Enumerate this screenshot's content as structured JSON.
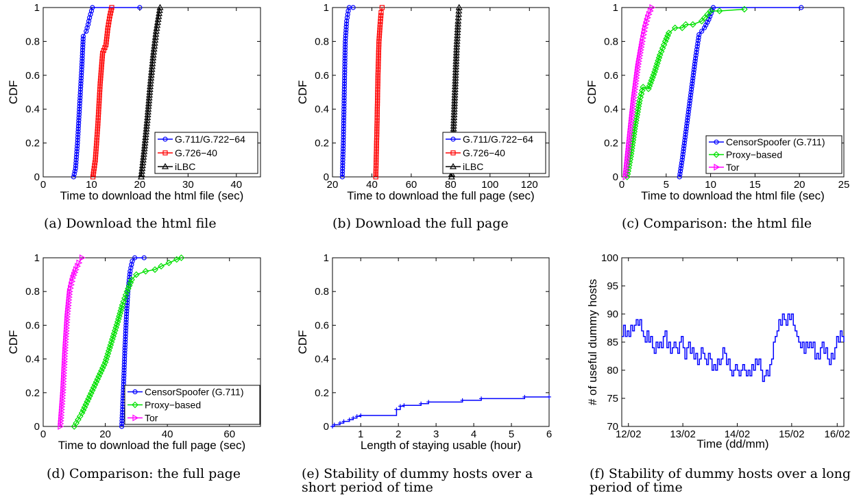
{
  "chart_data": [
    {
      "type": "line",
      "caption": "(a) Download the html file",
      "xlabel": "Time to download the html file (sec)",
      "ylabel": "CDF",
      "xlim": [
        0,
        45
      ],
      "ylim": [
        0,
        1
      ],
      "xticks": [
        0,
        10,
        20,
        30,
        40
      ],
      "yticks": [
        0,
        0.2,
        0.4,
        0.6,
        0.8,
        1
      ],
      "legend": "bottom-right",
      "series": [
        {
          "name": "G.711/G.722−64",
          "color": "#0000ff",
          "marker": "circle",
          "points": [
            [
              6.3,
              0
            ],
            [
              6.7,
              0.05
            ],
            [
              7.1,
              0.2
            ],
            [
              7.6,
              0.45
            ],
            [
              8.0,
              0.65
            ],
            [
              8.3,
              0.83
            ],
            [
              8.9,
              0.86
            ],
            [
              9.3,
              0.9
            ],
            [
              9.6,
              0.94
            ],
            [
              10.2,
              1.0
            ],
            [
              20,
              1.0
            ]
          ]
        },
        {
          "name": "G.726−40",
          "color": "#ff0000",
          "marker": "square",
          "points": [
            [
              10.3,
              0
            ],
            [
              10.8,
              0.1
            ],
            [
              11.3,
              0.3
            ],
            [
              11.8,
              0.55
            ],
            [
              12.3,
              0.73
            ],
            [
              13.0,
              0.78
            ],
            [
              13.4,
              0.88
            ],
            [
              13.8,
              0.95
            ],
            [
              14.2,
              1.0
            ]
          ]
        },
        {
          "name": "iLBC",
          "color": "#000000",
          "marker": "triangle-up",
          "points": [
            [
              20.3,
              0
            ],
            [
              20.9,
              0.15
            ],
            [
              21.6,
              0.35
            ],
            [
              22.2,
              0.55
            ],
            [
              22.8,
              0.72
            ],
            [
              23.4,
              0.86
            ],
            [
              24.2,
              1.0
            ]
          ]
        }
      ]
    },
    {
      "type": "line",
      "caption": "(b) Download the full page",
      "xlabel": "Time to download the full page (sec)",
      "ylabel": "CDF",
      "xlim": [
        20,
        130
      ],
      "ylim": [
        0,
        1
      ],
      "xticks": [
        20,
        40,
        60,
        80,
        100,
        120
      ],
      "yticks": [
        0,
        0.2,
        0.4,
        0.6,
        0.8,
        1
      ],
      "legend": "bottom-right",
      "series": [
        {
          "name": "G.711/G.722−64",
          "color": "#0000ff",
          "marker": "circle",
          "points": [
            [
              25,
              0
            ],
            [
              25.5,
              0.2
            ],
            [
              26,
              0.5
            ],
            [
              26.5,
              0.8
            ],
            [
              27.2,
              0.92
            ],
            [
              28,
              0.98
            ],
            [
              28.5,
              1.0
            ],
            [
              30.5,
              1.0
            ]
          ]
        },
        {
          "name": "G.726−40",
          "color": "#ff0000",
          "marker": "square",
          "points": [
            [
              42,
              0
            ],
            [
              42.6,
              0.3
            ],
            [
              43.1,
              0.6
            ],
            [
              43.6,
              0.8
            ],
            [
              44.2,
              0.9
            ],
            [
              44.7,
              0.97
            ],
            [
              45.2,
              1.0
            ]
          ]
        },
        {
          "name": "iLBC",
          "color": "#000000",
          "marker": "triangle-up",
          "points": [
            [
              80.5,
              0
            ],
            [
              81.2,
              0.2
            ],
            [
              82.2,
              0.5
            ],
            [
              83,
              0.75
            ],
            [
              83.8,
              0.92
            ],
            [
              84.3,
              1.0
            ]
          ]
        }
      ]
    },
    {
      "type": "line",
      "caption": "(c) Comparison: the html file",
      "xlabel": "Time to download the html file (sec)",
      "ylabel": "CDF",
      "xlim": [
        0,
        25
      ],
      "ylim": [
        0,
        1
      ],
      "xticks": [
        0,
        5,
        10,
        15,
        20,
        25
      ],
      "yticks": [
        0,
        0.2,
        0.4,
        0.6,
        0.8,
        1
      ],
      "legend": "bottom-right",
      "series": [
        {
          "name": "CensorSpoofer (G.711)",
          "color": "#0000ff",
          "marker": "circle",
          "points": [
            [
              6.5,
              0
            ],
            [
              6.8,
              0.1
            ],
            [
              7.3,
              0.3
            ],
            [
              7.8,
              0.5
            ],
            [
              8.3,
              0.7
            ],
            [
              8.7,
              0.84
            ],
            [
              9.3,
              0.88
            ],
            [
              9.8,
              0.93
            ],
            [
              10.3,
              1.0
            ],
            [
              20.2,
              1.0
            ]
          ]
        },
        {
          "name": "Proxy−based",
          "color": "#00e000",
          "marker": "diamond",
          "points": [
            [
              0.6,
              0
            ],
            [
              1.0,
              0.12
            ],
            [
              1.5,
              0.3
            ],
            [
              2.0,
              0.45
            ],
            [
              2.4,
              0.53
            ],
            [
              3.0,
              0.52
            ],
            [
              3.7,
              0.62
            ],
            [
              4.3,
              0.72
            ],
            [
              4.9,
              0.8
            ],
            [
              5.3,
              0.85
            ],
            [
              6.0,
              0.88
            ],
            [
              6.8,
              0.88
            ],
            [
              7.2,
              0.9
            ],
            [
              8.0,
              0.9
            ],
            [
              9.0,
              0.92
            ],
            [
              10.0,
              0.98
            ],
            [
              11.0,
              0.98
            ],
            [
              13.8,
              0.99
            ]
          ]
        },
        {
          "name": "Tor",
          "color": "#ff00ff",
          "marker": "triangle-right",
          "points": [
            [
              0.4,
              0
            ],
            [
              0.8,
              0.2
            ],
            [
              1.3,
              0.45
            ],
            [
              1.8,
              0.65
            ],
            [
              2.3,
              0.8
            ],
            [
              2.6,
              0.88
            ],
            [
              2.9,
              0.94
            ],
            [
              3.2,
              0.98
            ],
            [
              3.4,
              1.0
            ]
          ]
        }
      ]
    },
    {
      "type": "line",
      "caption": "(d) Comparison: the full page",
      "xlabel": "Time to download the full page (sec)",
      "ylabel": "CDF",
      "xlim": [
        0,
        70
      ],
      "ylim": [
        0,
        1
      ],
      "xticks": [
        0,
        20,
        40,
        60
      ],
      "yticks": [
        0,
        0.2,
        0.4,
        0.6,
        0.8,
        1
      ],
      "legend": "bottom-right",
      "series": [
        {
          "name": "CensorSpoofer (G.711)",
          "color": "#0000ff",
          "marker": "circle",
          "points": [
            [
              25.3,
              0
            ],
            [
              25.8,
              0.2
            ],
            [
              26.3,
              0.45
            ],
            [
              26.8,
              0.65
            ],
            [
              27.3,
              0.8
            ],
            [
              28,
              0.92
            ],
            [
              28.7,
              0.98
            ],
            [
              29.5,
              1.0
            ],
            [
              32.5,
              1.0
            ]
          ]
        },
        {
          "name": "Proxy−based",
          "color": "#00e000",
          "marker": "diamond",
          "points": [
            [
              10,
              0
            ],
            [
              12.5,
              0.08
            ],
            [
              15,
              0.18
            ],
            [
              17.5,
              0.28
            ],
            [
              20,
              0.38
            ],
            [
              22,
              0.5
            ],
            [
              24,
              0.62
            ],
            [
              25.5,
              0.72
            ],
            [
              27,
              0.8
            ],
            [
              28.5,
              0.87
            ],
            [
              30,
              0.9
            ],
            [
              33,
              0.92
            ],
            [
              36,
              0.93
            ],
            [
              38,
              0.95
            ],
            [
              40.5,
              0.97
            ],
            [
              43,
              0.99
            ],
            [
              44.5,
              1.0
            ]
          ]
        },
        {
          "name": "Tor",
          "color": "#ff00ff",
          "marker": "triangle-right",
          "points": [
            [
              5.5,
              0
            ],
            [
              6.3,
              0.2
            ],
            [
              7.0,
              0.45
            ],
            [
              7.7,
              0.65
            ],
            [
              8.5,
              0.8
            ],
            [
              9.5,
              0.88
            ],
            [
              10.5,
              0.93
            ],
            [
              11.5,
              0.97
            ],
            [
              12.5,
              1.0
            ]
          ]
        }
      ]
    },
    {
      "type": "line",
      "caption": "(e) Stability of dummy hosts over a short period of time",
      "xlabel": "Length of staying usable (hour)",
      "ylabel": "CDF",
      "xlim": [
        0.25,
        6
      ],
      "ylim": [
        0,
        1
      ],
      "xticks": [
        1,
        2,
        3,
        4,
        5,
        6
      ],
      "yticks": [
        0,
        0.2,
        0.4,
        0.6,
        0.8,
        1
      ],
      "series": [
        {
          "color": "#0000ff",
          "marker": "plus",
          "step": true,
          "points": [
            [
              0.25,
              0
            ],
            [
              0.3,
              0.01
            ],
            [
              0.45,
              0.02
            ],
            [
              0.55,
              0.03
            ],
            [
              0.7,
              0.04
            ],
            [
              0.8,
              0.05
            ],
            [
              0.9,
              0.06
            ],
            [
              1.0,
              0.065
            ],
            [
              1.95,
              0.1
            ],
            [
              2.05,
              0.12
            ],
            [
              2.15,
              0.125
            ],
            [
              2.6,
              0.135
            ],
            [
              2.8,
              0.145
            ],
            [
              3.7,
              0.155
            ],
            [
              4.2,
              0.165
            ],
            [
              5.35,
              0.175
            ],
            [
              6,
              0.175
            ]
          ]
        }
      ]
    },
    {
      "type": "line",
      "caption": "(f) Stability of dummy hosts over a long period of time",
      "xlabel": "Time (dd/mm)",
      "ylabel": "# of useful dummy hosts",
      "xlim": [
        0,
        100
      ],
      "ylim": [
        70,
        100
      ],
      "xtick_labels": [
        "12/02",
        "13/02",
        "14/02",
        "15/02",
        "16/02"
      ],
      "xtick_values": [
        3,
        27.5,
        52,
        76.5,
        97
      ],
      "yticks": [
        70,
        75,
        80,
        85,
        90,
        95,
        100
      ],
      "series": [
        {
          "color": "#0000ff",
          "marker": "none",
          "values": [
            86,
            88,
            86,
            87,
            86,
            88,
            87,
            88,
            89,
            88,
            89,
            87,
            86,
            85,
            87,
            85,
            86,
            84,
            83,
            85,
            84,
            85,
            84,
            86,
            87,
            84,
            85,
            83,
            84,
            85,
            84,
            83,
            85,
            86,
            84,
            82,
            84,
            85,
            83,
            84,
            82,
            83,
            81,
            82,
            84,
            83,
            82,
            81,
            83,
            82,
            80,
            81,
            80,
            82,
            81,
            82,
            84,
            83,
            81,
            82,
            80,
            79,
            80,
            81,
            80,
            79,
            80,
            81,
            80,
            79,
            80,
            79,
            81,
            80,
            82,
            81,
            82,
            80,
            78,
            79,
            80,
            79,
            81,
            82,
            85,
            86,
            87,
            89,
            88,
            90,
            89,
            88,
            90,
            89,
            90,
            88,
            87,
            86,
            85,
            84,
            85,
            83,
            85,
            84,
            85,
            84,
            85,
            82,
            83,
            82,
            84,
            85,
            83,
            84,
            82,
            81,
            83,
            82,
            84,
            86,
            85,
            87,
            86,
            85
          ]
        }
      ]
    }
  ]
}
